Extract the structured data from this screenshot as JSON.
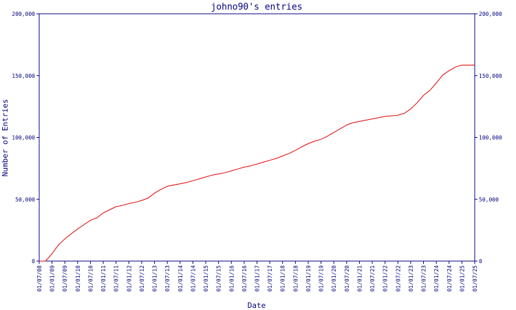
{
  "chart_data": {
    "type": "line",
    "title": "johno90's entries",
    "xlabel": "Date",
    "ylabel": "Number of Entries",
    "ylim": [
      0,
      200000
    ],
    "y_ticks": [
      0,
      50000,
      100000,
      150000,
      200000
    ],
    "y_tick_labels": [
      "0",
      "50,000",
      "100,000",
      "150,000",
      "200,000"
    ],
    "x_ticks": [
      "01/07/08",
      "01/01/09",
      "01/07/09",
      "01/01/10",
      "01/07/10",
      "01/01/11",
      "01/07/11",
      "01/01/12",
      "01/07/12",
      "01/01/13",
      "01/07/13",
      "01/01/14",
      "01/07/14",
      "01/01/15",
      "01/07/15",
      "01/01/16",
      "01/07/16",
      "01/01/17",
      "01/07/17",
      "01/01/18",
      "01/07/18",
      "01/01/19",
      "01/07/19",
      "01/01/20",
      "01/07/20",
      "01/01/21",
      "01/07/21",
      "01/01/22",
      "01/07/22",
      "01/01/23",
      "01/07/23",
      "01/01/24",
      "01/07/24",
      "01/01/25",
      "01/07/25"
    ],
    "grid": false,
    "line_color": "#e00000",
    "axis_color": "#000080",
    "series": [
      {
        "name": "",
        "x": [
          "01/07/08",
          "01/10/08",
          "01/01/09",
          "01/04/09",
          "01/07/09",
          "01/10/09",
          "01/01/10",
          "01/04/10",
          "01/07/10",
          "01/10/10",
          "01/01/11",
          "01/04/11",
          "01/07/11",
          "01/10/11",
          "01/01/12",
          "01/04/12",
          "01/07/12",
          "01/10/12",
          "01/01/13",
          "01/04/13",
          "01/07/13",
          "01/10/13",
          "01/01/14",
          "01/04/14",
          "01/07/14",
          "01/10/14",
          "01/01/15",
          "01/04/15",
          "01/07/15",
          "01/10/15",
          "01/01/16",
          "01/04/16",
          "01/07/16",
          "01/10/16",
          "01/01/17",
          "01/04/17",
          "01/07/17",
          "01/10/17",
          "01/01/18",
          "01/04/18",
          "01/07/18",
          "01/10/18",
          "01/01/19",
          "01/04/19",
          "01/07/19",
          "01/10/19",
          "01/01/20",
          "01/04/20",
          "01/07/20",
          "01/10/20",
          "01/01/21",
          "01/04/21",
          "01/07/21",
          "01/10/21",
          "01/01/22",
          "01/04/22",
          "01/07/22",
          "01/10/22",
          "01/01/23",
          "01/04/23",
          "01/07/23",
          "01/10/23",
          "01/01/24",
          "01/04/24",
          "01/07/24",
          "01/10/24",
          "01/01/25",
          "01/04/25",
          "01/07/25"
        ],
        "values": [
          0,
          0,
          6000,
          13000,
          18000,
          22000,
          26000,
          29500,
          33000,
          35000,
          39000,
          41500,
          44000,
          45000,
          46500,
          47500,
          49000,
          51000,
          55000,
          58000,
          60500,
          61500,
          62500,
          63500,
          65000,
          66500,
          68000,
          69500,
          70500,
          71500,
          73000,
          74500,
          76000,
          77000,
          78500,
          80000,
          81500,
          83000,
          85000,
          87000,
          89500,
          92500,
          95000,
          97000,
          98500,
          101000,
          104000,
          107000,
          110000,
          112000,
          113000,
          114000,
          115000,
          116000,
          117000,
          117500,
          118000,
          119500,
          123000,
          128000,
          134000,
          138000,
          144000,
          150500,
          154000,
          157000,
          158500,
          158500,
          158500
        ]
      }
    ]
  }
}
